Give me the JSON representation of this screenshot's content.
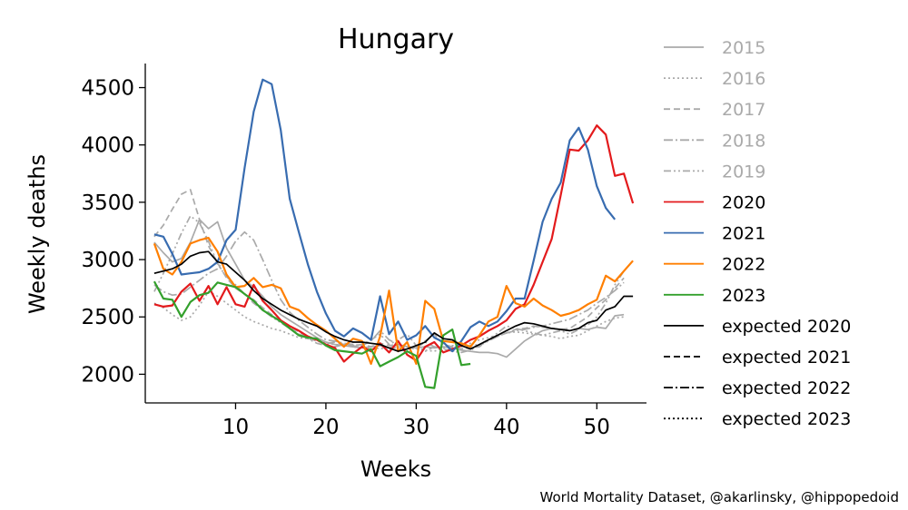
{
  "credit": "World Mortality Dataset, @akarlinsky, @hippopedoid",
  "chart_data": {
    "type": "line",
    "title": "Hungary",
    "xlabel": "Weeks",
    "ylabel": "Weekly deaths",
    "xlim": [
      0,
      55.5
    ],
    "ylim": [
      1750,
      4710
    ],
    "xticks": [
      10,
      20,
      30,
      40,
      50
    ],
    "yticks": [
      2000,
      2500,
      3000,
      3500,
      4000,
      4500
    ],
    "grid": false,
    "legend_position": "right",
    "series": [
      {
        "name": "2015",
        "color": "#aaaaaa",
        "dash": "solid",
        "width": 1.7,
        "x_start": 1,
        "values": [
          3150,
          3060,
          2980,
          3010,
          3150,
          3350,
          3270,
          3330,
          3100,
          2960,
          2820,
          2760,
          2680,
          2590,
          2520,
          2470,
          2420,
          2370,
          2320,
          2280,
          2260,
          2250,
          2240,
          2230,
          2240,
          2250,
          2230,
          2260,
          2240,
          2230,
          2240,
          2230,
          2240,
          2230,
          2210,
          2200,
          2190,
          2190,
          2180,
          2150,
          2220,
          2290,
          2340,
          2380,
          2400,
          2390,
          2380,
          2400,
          2390,
          2410,
          2400,
          2510,
          2520
        ]
      },
      {
        "name": "2016",
        "color": "#aaaaaa",
        "dash": "dotted",
        "width": 1.7,
        "x_start": 1,
        "values": [
          2620,
          2580,
          2520,
          2470,
          2500,
          2600,
          2720,
          2680,
          2620,
          2560,
          2500,
          2460,
          2430,
          2400,
          2380,
          2350,
          2320,
          2310,
          2290,
          2270,
          2260,
          2250,
          2240,
          2230,
          2220,
          2230,
          2210,
          2240,
          2230,
          2220,
          2210,
          2200,
          2230,
          2250,
          2240,
          2270,
          2300,
          2320,
          2340,
          2360,
          2370,
          2360,
          2350,
          2340,
          2330,
          2310,
          2330,
          2340,
          2380,
          2420,
          2460,
          2490,
          2500
        ]
      },
      {
        "name": "2017",
        "color": "#aaaaaa",
        "dash": "dashed",
        "width": 1.7,
        "x_start": 1,
        "values": [
          3200,
          3300,
          3440,
          3570,
          3610,
          3350,
          3120,
          2970,
          2840,
          2750,
          2700,
          2650,
          2580,
          2520,
          2460,
          2410,
          2370,
          2320,
          2290,
          2270,
          2280,
          2260,
          2250,
          2260,
          2240,
          2270,
          2250,
          2260,
          2240,
          2230,
          2290,
          2350,
          2260,
          2240,
          2220,
          2230,
          2240,
          2300,
          2330,
          2360,
          2390,
          2400,
          2420,
          2410,
          2400,
          2390,
          2400,
          2450,
          2500,
          2580,
          2650,
          2750,
          2840
        ]
      },
      {
        "name": "2018",
        "color": "#aaaaaa",
        "dash": "dashdot",
        "width": 1.7,
        "x_start": 1,
        "values": [
          2780,
          2720,
          2690,
          2700,
          2760,
          2820,
          2880,
          2920,
          3030,
          3160,
          3240,
          3170,
          3000,
          2820,
          2650,
          2540,
          2470,
          2410,
          2350,
          2300,
          2290,
          2270,
          2260,
          2250,
          2290,
          2380,
          2300,
          2260,
          2240,
          2230,
          2280,
          2240,
          2220,
          2200,
          2190,
          2210,
          2250,
          2290,
          2330,
          2360,
          2380,
          2390,
          2410,
          2420,
          2440,
          2460,
          2480,
          2520,
          2560,
          2620,
          2670,
          2730,
          2800
        ]
      },
      {
        "name": "2019",
        "color": "#aaaaaa",
        "dash": "dashdotdot",
        "width": 1.7,
        "x_start": 1,
        "values": [
          2720,
          2880,
          3050,
          3230,
          3380,
          3320,
          3160,
          2960,
          2850,
          2780,
          2700,
          2620,
          2560,
          2500,
          2450,
          2400,
          2350,
          2310,
          2270,
          2250,
          2240,
          2260,
          2240,
          2260,
          2300,
          2350,
          2260,
          2300,
          2350,
          2250,
          2200,
          2240,
          2230,
          2200,
          2220,
          2250,
          2260,
          2300,
          2360,
          2420,
          2400,
          2380,
          2360,
          2340,
          2360,
          2380,
          2350,
          2390,
          2430,
          2500,
          2620,
          2780,
          2900
        ]
      },
      {
        "name": "2020",
        "color": "#e31a1c",
        "dash": "solid",
        "width": 2.2,
        "x_start": 1,
        "values": [
          2610,
          2590,
          2600,
          2720,
          2790,
          2640,
          2770,
          2610,
          2760,
          2610,
          2590,
          2780,
          2640,
          2560,
          2470,
          2420,
          2380,
          2330,
          2300,
          2260,
          2230,
          2110,
          2180,
          2240,
          2200,
          2270,
          2190,
          2290,
          2170,
          2120,
          2240,
          2280,
          2190,
          2220,
          2250,
          2300,
          2330,
          2380,
          2420,
          2470,
          2570,
          2610,
          2780,
          2980,
          3180,
          3560,
          3960,
          3950,
          4040,
          4170,
          4090,
          3730,
          3750,
          3490
        ]
      },
      {
        "name": "2021",
        "color": "#386cb0",
        "dash": "solid",
        "width": 2.2,
        "x_start": 1,
        "values": [
          3220,
          3200,
          3050,
          2870,
          2880,
          2890,
          2920,
          2980,
          3170,
          3260,
          3800,
          4290,
          4570,
          4530,
          4130,
          3530,
          3240,
          2960,
          2720,
          2530,
          2380,
          2330,
          2400,
          2360,
          2300,
          2680,
          2350,
          2460,
          2300,
          2340,
          2420,
          2320,
          2280,
          2200,
          2290,
          2410,
          2460,
          2420,
          2460,
          2550,
          2660,
          2660,
          2990,
          3330,
          3530,
          3670,
          4040,
          4150,
          3960,
          3640,
          3450,
          3350
        ]
      },
      {
        "name": "2022",
        "color": "#ff7f00",
        "dash": "solid",
        "width": 2.2,
        "x_start": 1,
        "values": [
          3140,
          2920,
          2870,
          2980,
          3140,
          3170,
          3190,
          3070,
          2870,
          2760,
          2770,
          2840,
          2760,
          2780,
          2750,
          2590,
          2560,
          2490,
          2430,
          2380,
          2310,
          2240,
          2310,
          2290,
          2090,
          2330,
          2730,
          2200,
          2280,
          2090,
          2640,
          2570,
          2290,
          2280,
          2270,
          2240,
          2340,
          2460,
          2500,
          2770,
          2620,
          2590,
          2660,
          2600,
          2560,
          2510,
          2530,
          2560,
          2610,
          2650,
          2860,
          2810,
          2900,
          2990
        ]
      },
      {
        "name": "2023",
        "color": "#33a02c",
        "dash": "solid",
        "width": 2.2,
        "x_start": 1,
        "values": [
          2810,
          2660,
          2650,
          2500,
          2630,
          2690,
          2710,
          2800,
          2780,
          2760,
          2700,
          2640,
          2560,
          2510,
          2460,
          2400,
          2340,
          2320,
          2310,
          2250,
          2210,
          2200,
          2190,
          2180,
          2220,
          2070,
          2110,
          2150,
          2200,
          2160,
          1890,
          1880,
          2340,
          2390,
          2080,
          2090
        ]
      },
      {
        "name": "expected 2020",
        "color": "#000000",
        "dash": "solid",
        "width": 1.7,
        "x_start": 1,
        "values": [
          2880,
          2900,
          2920,
          2960,
          3030,
          3060,
          3070,
          2980,
          2960,
          2890,
          2820,
          2730,
          2660,
          2610,
          2560,
          2520,
          2480,
          2450,
          2420,
          2370,
          2330,
          2300,
          2280,
          2280,
          2270,
          2260,
          2230,
          2200,
          2220,
          2250,
          2280,
          2360,
          2310,
          2300,
          2250,
          2220,
          2260,
          2300,
          2340,
          2380,
          2420,
          2450,
          2440,
          2420,
          2400,
          2390,
          2380,
          2400,
          2450,
          2470,
          2560,
          2590,
          2680,
          2680
        ]
      }
    ],
    "legend": [
      {
        "label": "2015",
        "color": "#aaaaaa",
        "dash": "solid",
        "text_color": "#aaaaaa"
      },
      {
        "label": "2016",
        "color": "#aaaaaa",
        "dash": "dotted",
        "text_color": "#aaaaaa"
      },
      {
        "label": "2017",
        "color": "#aaaaaa",
        "dash": "dashed",
        "text_color": "#aaaaaa"
      },
      {
        "label": "2018",
        "color": "#aaaaaa",
        "dash": "dashdot",
        "text_color": "#aaaaaa"
      },
      {
        "label": "2019",
        "color": "#aaaaaa",
        "dash": "dashdotdot",
        "text_color": "#aaaaaa"
      },
      {
        "label": "2020",
        "color": "#e31a1c",
        "dash": "solid",
        "text_color": "#000000"
      },
      {
        "label": "2021",
        "color": "#386cb0",
        "dash": "solid",
        "text_color": "#000000"
      },
      {
        "label": "2022",
        "color": "#ff7f00",
        "dash": "solid",
        "text_color": "#000000"
      },
      {
        "label": "2023",
        "color": "#33a02c",
        "dash": "solid",
        "text_color": "#000000"
      },
      {
        "label": "expected 2020",
        "color": "#000000",
        "dash": "solid",
        "text_color": "#000000"
      },
      {
        "label": "expected 2021",
        "color": "#000000",
        "dash": "dashed",
        "text_color": "#000000"
      },
      {
        "label": "expected 2022",
        "color": "#000000",
        "dash": "dashdot",
        "text_color": "#000000"
      },
      {
        "label": "expected 2023",
        "color": "#000000",
        "dash": "dotted",
        "text_color": "#000000"
      }
    ]
  }
}
